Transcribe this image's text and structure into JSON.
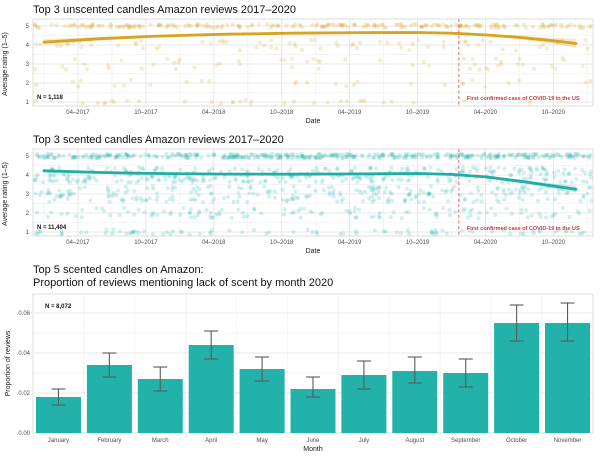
{
  "page": {
    "background": "#ffffff"
  },
  "chart_data": [
    {
      "id": "unscented-ratings",
      "type": "scatter",
      "title": "Top 3 unscented candles Amazon reviews 2017–2020",
      "xlabel": "Date",
      "ylabel": "Average rating (1–5)",
      "n_label": "N = 1,118",
      "covid_label": "First confirmed case of COVID-19 in the US",
      "covid_month_index": 36.65,
      "x_domain_months": [
        -1,
        48.5
      ],
      "ylim": [
        1,
        5
      ],
      "y_ticks": [
        1,
        2,
        3,
        4,
        5
      ],
      "x_ticks": [
        {
          "m": 3,
          "label": "04–2017"
        },
        {
          "m": 9,
          "label": "10–2017"
        },
        {
          "m": 15,
          "label": "04–2018"
        },
        {
          "m": 21,
          "label": "10–2018"
        },
        {
          "m": 27,
          "label": "04–2019"
        },
        {
          "m": 33,
          "label": "10–2019"
        },
        {
          "m": 39,
          "label": "04–2020"
        },
        {
          "m": 45,
          "label": "10–2020"
        }
      ],
      "x_minor_months": [
        0,
        6,
        12,
        18,
        24,
        30,
        36,
        42,
        48
      ],
      "y_minor": [
        1.5,
        2.5,
        3.5,
        4.5
      ],
      "trend": {
        "months": [
          0,
          5,
          10,
          16,
          22,
          28,
          33,
          36,
          39,
          42,
          45,
          47
        ],
        "rating": [
          4.15,
          4.33,
          4.47,
          4.57,
          4.62,
          4.65,
          4.66,
          4.62,
          4.53,
          4.4,
          4.22,
          4.08
        ],
        "halfwidth": [
          0.15,
          0.09,
          0.06,
          0.04,
          0.04,
          0.04,
          0.04,
          0.05,
          0.07,
          0.1,
          0.16,
          0.24
        ]
      },
      "scatter_bands": [
        {
          "rating": 5,
          "count": 230,
          "jitter": 0.1
        },
        {
          "rating": 4,
          "count": 70,
          "jitter": 0.28
        },
        {
          "rating": 3,
          "count": 55,
          "jitter": 0.3
        },
        {
          "rating": 2,
          "count": 28,
          "jitter": 0.2
        },
        {
          "rating": 1,
          "count": 35,
          "jitter": 0.1
        }
      ],
      "seed": 7,
      "colors": {
        "line": "#D9A321",
        "dot": "#D9A321",
        "band_opacity": 0.25,
        "dot_opacity": 0.22,
        "covid_line": "#E05C5C",
        "covid_text": "#CC3B3B"
      }
    },
    {
      "id": "scented-ratings",
      "type": "scatter",
      "title": "Top 3 scented candles Amazon reviews 2017–2020",
      "xlabel": "Date",
      "ylabel": "Average rating (1–5)",
      "n_label": "N = 11,404",
      "covid_label": "First confirmed case of COVID-19 in the US",
      "covid_month_index": 36.65,
      "x_domain_months": [
        -1,
        48.5
      ],
      "ylim": [
        1,
        5
      ],
      "y_ticks": [
        1,
        2,
        3,
        4,
        5
      ],
      "x_ticks": [
        {
          "m": 3,
          "label": "04–2017"
        },
        {
          "m": 9,
          "label": "10–2017"
        },
        {
          "m": 15,
          "label": "04–2018"
        },
        {
          "m": 21,
          "label": "10–2018"
        },
        {
          "m": 27,
          "label": "04–2019"
        },
        {
          "m": 33,
          "label": "10–2019"
        },
        {
          "m": 39,
          "label": "04–2020"
        },
        {
          "m": 45,
          "label": "10–2020"
        }
      ],
      "x_minor_months": [
        0,
        6,
        12,
        18,
        24,
        30,
        36,
        42,
        48
      ],
      "y_minor": [
        1.5,
        2.5,
        3.5,
        4.5
      ],
      "trend": {
        "months": [
          0,
          5,
          10,
          16,
          22,
          28,
          33,
          36,
          39,
          42,
          45,
          47
        ],
        "rating": [
          4.22,
          4.13,
          4.08,
          4.05,
          4.04,
          4.06,
          4.08,
          4.03,
          3.9,
          3.68,
          3.42,
          3.25
        ],
        "halfwidth": [
          0.08,
          0.05,
          0.04,
          0.03,
          0.03,
          0.03,
          0.04,
          0.05,
          0.07,
          0.09,
          0.13,
          0.18
        ]
      },
      "scatter_bands": [
        {
          "rating": 5,
          "count": 420,
          "jitter": 0.12
        },
        {
          "rating": 4,
          "count": 330,
          "jitter": 0.4
        },
        {
          "rating": 3,
          "count": 250,
          "jitter": 0.42
        },
        {
          "rating": 2,
          "count": 120,
          "jitter": 0.28
        },
        {
          "rating": 1,
          "count": 85,
          "jitter": 0.12
        }
      ],
      "seed": 13,
      "colors": {
        "line": "#1FAEA6",
        "dot": "#2BB5AC",
        "band_opacity": 0.25,
        "dot_opacity": 0.22,
        "covid_line": "#E05C5C",
        "covid_text": "#CC3B3B"
      }
    },
    {
      "id": "lack-of-scent",
      "type": "bar",
      "title_line1": "Top 5 scented candles on Amazon:",
      "title_line2": "Proportion of reviews mentioning lack of scent by month 2020",
      "xlabel": "Month",
      "ylabel": "Proportion of reviews",
      "n_label": "N = 8,072",
      "categories": [
        "January",
        "February",
        "March",
        "April",
        "May",
        "June",
        "July",
        "August",
        "September",
        "October",
        "November"
      ],
      "values": [
        0.018,
        0.034,
        0.027,
        0.044,
        0.032,
        0.022,
        0.029,
        0.031,
        0.03,
        0.055,
        0.055
      ],
      "err_low": [
        0.014,
        0.028,
        0.021,
        0.037,
        0.026,
        0.018,
        0.022,
        0.025,
        0.023,
        0.046,
        0.046
      ],
      "err_high": [
        0.022,
        0.04,
        0.033,
        0.051,
        0.038,
        0.028,
        0.036,
        0.038,
        0.037,
        0.064,
        0.065
      ],
      "y_ticks": [
        0,
        0.02,
        0.04,
        0.06
      ],
      "y_tick_labels": [
        "0.00",
        "0.02",
        "0.04",
        "0.06"
      ],
      "y_minor": [
        0.01,
        0.03,
        0.05
      ],
      "ylim": [
        0,
        0.0695
      ],
      "colors": {
        "bar": "#22B2A9",
        "error": "#5A5A5A"
      }
    }
  ]
}
